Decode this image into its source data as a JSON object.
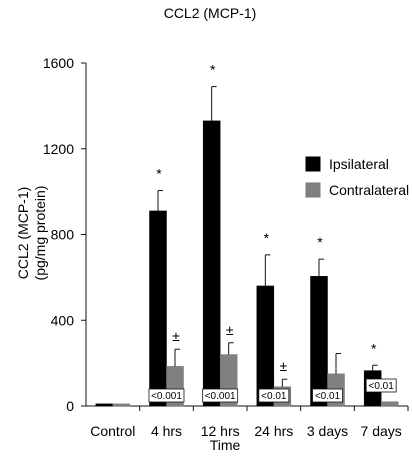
{
  "chart_data": {
    "type": "bar",
    "title": "CCL2 (MCP-1)",
    "xlabel": "Time",
    "ylabel_line1": "CCL2 (MCP-1)",
    "ylabel_line2": "(pg/mg protein)",
    "ylim": [
      0,
      1600
    ],
    "yticks": [
      0,
      400,
      800,
      1200,
      1600
    ],
    "categories": [
      "Control",
      "4 hrs",
      "12 hrs",
      "24 hrs",
      "3 days",
      "7 days"
    ],
    "series": [
      {
        "name": "Ipsilateral",
        "color": "#000000",
        "values": [
          10,
          910,
          1330,
          560,
          605,
          165
        ],
        "errors": [
          0,
          95,
          160,
          145,
          80,
          25
        ]
      },
      {
        "name": "Contralateral",
        "color": "#808080",
        "values": [
          10,
          185,
          240,
          90,
          150,
          20
        ],
        "errors": [
          0,
          80,
          55,
          35,
          95,
          0
        ]
      }
    ],
    "significance": {
      "ipsilateral_markers": [
        "",
        "*",
        "*",
        "*",
        "*",
        "*"
      ],
      "contralateral_markers": [
        "",
        "±",
        "±",
        "±",
        "",
        ""
      ]
    },
    "p_values": [
      "",
      "<0.001",
      "<0.001",
      "<0.01",
      "<0.01",
      "<0.01"
    ],
    "legend": {
      "placement": "right",
      "entries": [
        {
          "label": "Ipsilateral",
          "color": "#000000"
        },
        {
          "label": "Contralateral",
          "color": "#808080"
        }
      ]
    }
  }
}
